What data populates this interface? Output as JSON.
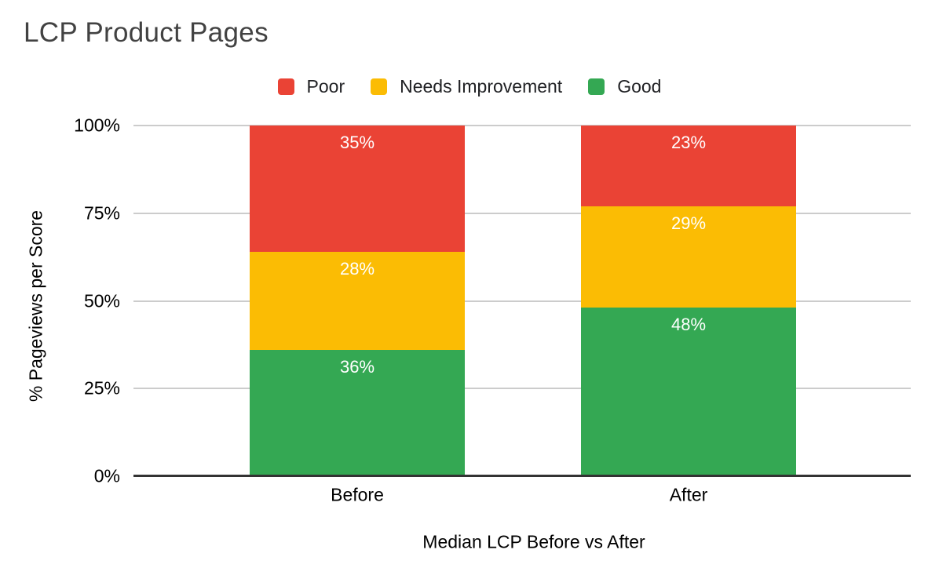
{
  "title": "LCP Product Pages",
  "legend": {
    "items": [
      {
        "label": "Poor",
        "color": "#EA4335"
      },
      {
        "label": "Needs Improvement",
        "color": "#FBBC04"
      },
      {
        "label": "Good",
        "color": "#34A853"
      }
    ]
  },
  "y_axis": {
    "title": "% Pageviews per Score",
    "ticks": [
      "100%",
      "75%",
      "50%",
      "25%",
      "0%"
    ]
  },
  "x_axis": {
    "title": "Median LCP Before vs After",
    "categories": [
      "Before",
      "After"
    ]
  },
  "chart_data": {
    "type": "bar",
    "stacked": true,
    "title": "LCP Product Pages",
    "xlabel": "Median LCP Before vs After",
    "ylabel": "% Pageviews per Score",
    "ylim": [
      0,
      100
    ],
    "yticks": [
      0,
      25,
      50,
      75,
      100
    ],
    "grid": true,
    "legend_position": "top",
    "categories": [
      "Before",
      "After"
    ],
    "series": [
      {
        "name": "Good",
        "color": "#34A853",
        "values": [
          36,
          48
        ],
        "labels": [
          "36%",
          "48%"
        ]
      },
      {
        "name": "Needs Improvement",
        "color": "#FBBC04",
        "values": [
          28,
          29
        ],
        "labels": [
          "28%",
          "29%"
        ]
      },
      {
        "name": "Poor",
        "color": "#EA4335",
        "values": [
          35,
          23
        ],
        "labels": [
          "35%",
          "23%"
        ]
      }
    ],
    "colors": {
      "poor": "#EA4335",
      "needs_improvement": "#FBBC04",
      "good": "#34A853",
      "gridline": "#CCCCCC",
      "axis_line": "#333333",
      "title_text": "#424242",
      "value_label_text": "#FFFFFF"
    }
  }
}
